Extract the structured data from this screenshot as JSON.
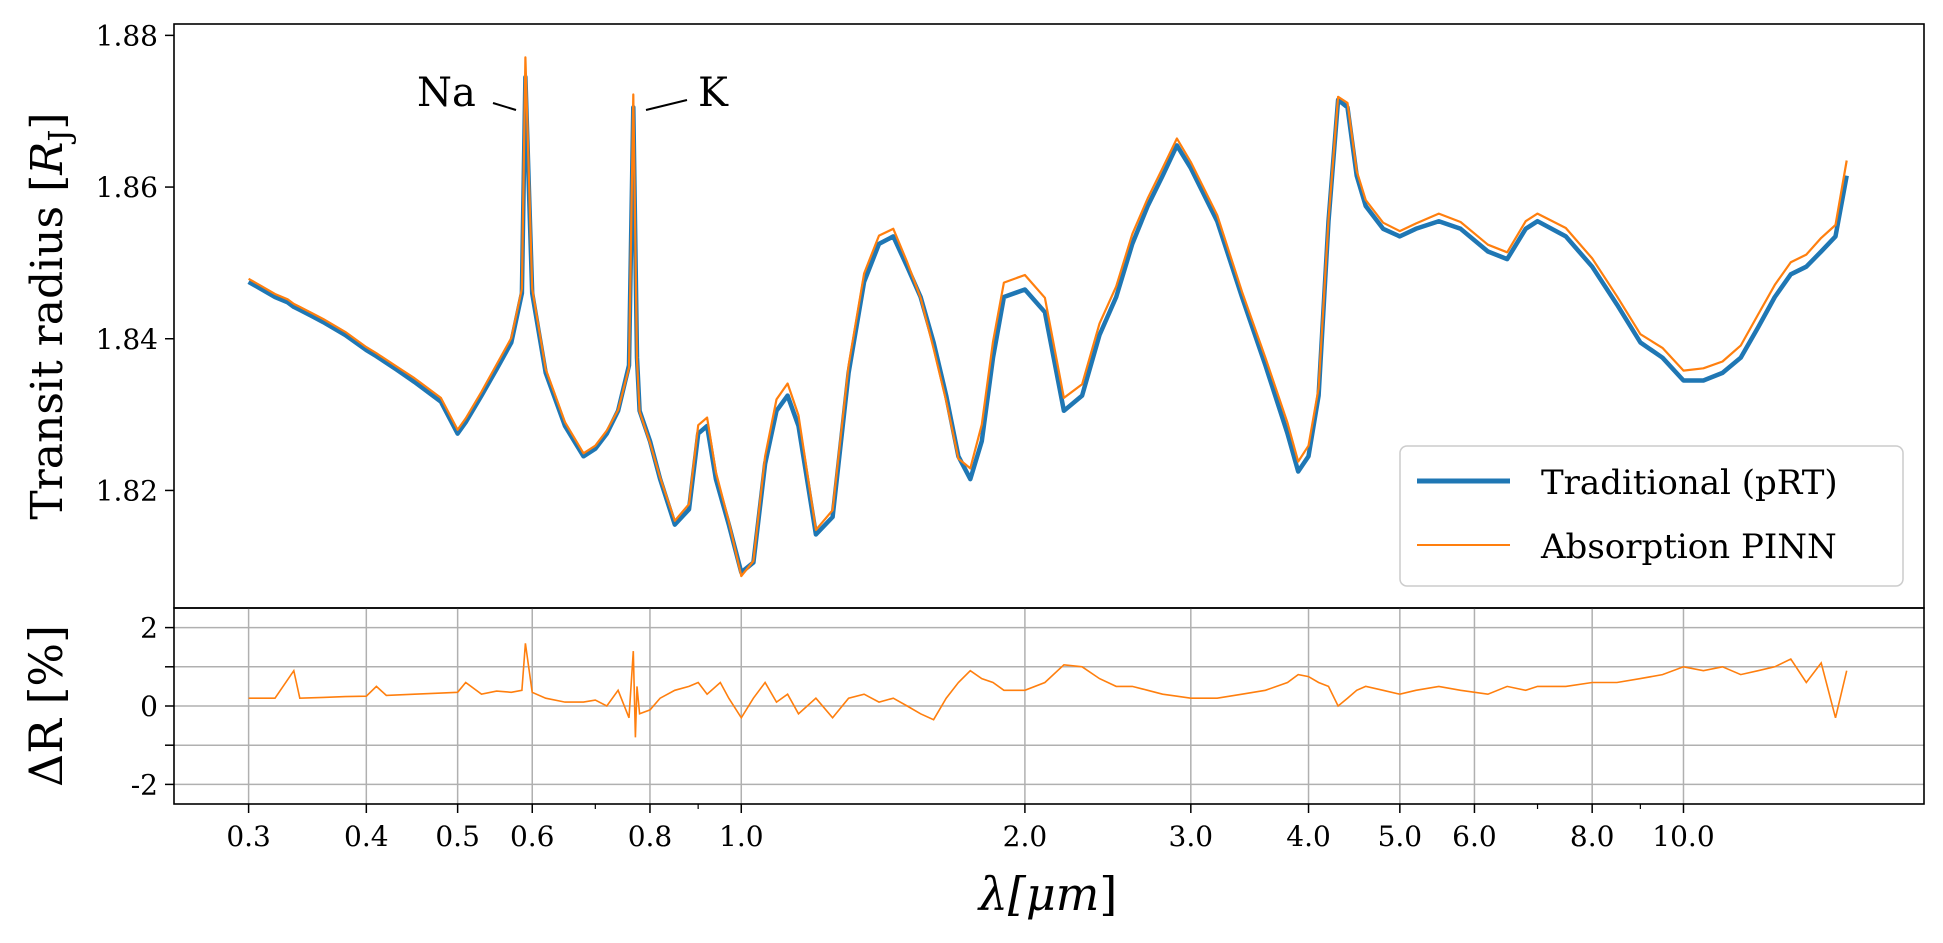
{
  "chart_data": [
    {
      "panel": "top",
      "type": "line",
      "xscale": "log",
      "xlim": [
        0.25,
        18.0
      ],
      "ylim": [
        1.8045,
        1.8815
      ],
      "ylabel": "Transit radius [R_J]",
      "ylabel_main": "Transit radius [",
      "ylabel_var": "R",
      "ylabel_sub": "J",
      "ylabel_close": "]",
      "yticks": [
        1.82,
        1.84,
        1.86,
        1.88
      ],
      "ytick_labels": [
        "1.82",
        "1.84",
        "1.86",
        "1.88"
      ],
      "grid": false,
      "legend_position": "lower-right",
      "series": [
        {
          "name": "Traditional (pRT)",
          "color": "#1f77b4",
          "x": [
            0.3,
            0.31,
            0.32,
            0.33,
            0.335,
            0.34,
            0.35,
            0.36,
            0.38,
            0.4,
            0.41,
            0.43,
            0.45,
            0.48,
            0.5,
            0.51,
            0.53,
            0.55,
            0.57,
            0.585,
            0.59,
            0.6,
            0.62,
            0.65,
            0.68,
            0.7,
            0.72,
            0.74,
            0.76,
            0.768,
            0.775,
            0.78,
            0.8,
            0.82,
            0.85,
            0.88,
            0.9,
            0.92,
            0.94,
            0.97,
            1.0,
            1.03,
            1.06,
            1.09,
            1.12,
            1.15,
            1.2,
            1.25,
            1.3,
            1.35,
            1.4,
            1.45,
            1.5,
            1.55,
            1.6,
            1.65,
            1.7,
            1.75,
            1.8,
            1.85,
            1.9,
            2.0,
            2.1,
            2.2,
            2.3,
            2.4,
            2.5,
            2.6,
            2.7,
            2.8,
            2.9,
            3.0,
            3.2,
            3.4,
            3.6,
            3.8,
            3.9,
            4.0,
            4.1,
            4.2,
            4.3,
            4.4,
            4.5,
            4.6,
            4.8,
            5.0,
            5.2,
            5.5,
            5.8,
            6.2,
            6.5,
            6.8,
            7.0,
            7.5,
            8.0,
            8.5,
            9.0,
            9.5,
            10.0,
            10.5,
            11.0,
            11.5,
            12.0,
            12.5,
            13.0,
            13.5,
            14.0,
            14.5,
            14.9
          ],
          "y": [
            1.8475,
            1.8465,
            1.8455,
            1.8448,
            1.8442,
            1.8438,
            1.843,
            1.8422,
            1.8405,
            1.8385,
            1.8377,
            1.836,
            1.8343,
            1.8317,
            1.8275,
            1.829,
            1.8325,
            1.836,
            1.8395,
            1.846,
            1.8745,
            1.846,
            1.8355,
            1.8285,
            1.8245,
            1.8255,
            1.8275,
            1.8305,
            1.8365,
            1.8705,
            1.8375,
            1.8305,
            1.8265,
            1.8215,
            1.8155,
            1.8175,
            1.8275,
            1.8285,
            1.8215,
            1.8155,
            1.8092,
            1.8105,
            1.8235,
            1.8305,
            1.8325,
            1.8285,
            1.8142,
            1.8165,
            1.8355,
            1.8475,
            1.8525,
            1.8535,
            1.8495,
            1.8455,
            1.8395,
            1.8325,
            1.8245,
            1.8215,
            1.8265,
            1.8375,
            1.8455,
            1.8465,
            1.8435,
            1.8305,
            1.8325,
            1.8405,
            1.8455,
            1.8525,
            1.8575,
            1.8615,
            1.8655,
            1.8625,
            1.8555,
            1.8455,
            1.8365,
            1.8275,
            1.8225,
            1.8245,
            1.8325,
            1.8555,
            1.8715,
            1.8705,
            1.8615,
            1.8575,
            1.8545,
            1.8535,
            1.8545,
            1.8555,
            1.8545,
            1.8515,
            1.8505,
            1.8545,
            1.8555,
            1.8535,
            1.8495,
            1.8445,
            1.8395,
            1.8375,
            1.8345,
            1.8345,
            1.8355,
            1.8375,
            1.8415,
            1.8455,
            1.8485,
            1.8495,
            1.8515,
            1.8535,
            1.8615
          ]
        },
        {
          "name": "Absorption PINN",
          "color": "#ff7f0e",
          "x": [
            0.3,
            0.31,
            0.32,
            0.33,
            0.335,
            0.34,
            0.35,
            0.36,
            0.38,
            0.4,
            0.41,
            0.43,
            0.45,
            0.48,
            0.5,
            0.51,
            0.53,
            0.55,
            0.57,
            0.585,
            0.59,
            0.6,
            0.62,
            0.65,
            0.68,
            0.7,
            0.72,
            0.74,
            0.76,
            0.768,
            0.775,
            0.78,
            0.8,
            0.82,
            0.85,
            0.88,
            0.9,
            0.92,
            0.94,
            0.97,
            1.0,
            1.03,
            1.06,
            1.09,
            1.12,
            1.15,
            1.2,
            1.25,
            1.3,
            1.35,
            1.4,
            1.45,
            1.5,
            1.55,
            1.6,
            1.65,
            1.7,
            1.75,
            1.8,
            1.85,
            1.9,
            2.0,
            2.1,
            2.2,
            2.3,
            2.4,
            2.5,
            2.6,
            2.7,
            2.8,
            2.9,
            3.0,
            3.2,
            3.4,
            3.6,
            3.8,
            3.9,
            4.0,
            4.1,
            4.2,
            4.3,
            4.4,
            4.5,
            4.6,
            4.8,
            5.0,
            5.2,
            5.5,
            5.8,
            6.2,
            6.5,
            6.8,
            7.0,
            7.5,
            8.0,
            8.5,
            9.0,
            9.5,
            10.0,
            10.5,
            11.0,
            11.5,
            12.0,
            12.5,
            13.0,
            13.5,
            14.0,
            14.5,
            14.9
          ],
          "y": [
            1.8479,
            1.8469,
            1.8459,
            1.8452,
            1.8446,
            1.8442,
            1.8434,
            1.8426,
            1.8409,
            1.8389,
            1.8381,
            1.8364,
            1.8348,
            1.8322,
            1.828,
            1.8295,
            1.833,
            1.8366,
            1.8401,
            1.8466,
            1.8771,
            1.8466,
            1.836,
            1.829,
            1.8249,
            1.8259,
            1.8279,
            1.8306,
            1.8362,
            1.8722,
            1.8372,
            1.8304,
            1.8263,
            1.8217,
            1.816,
            1.8182,
            1.8286,
            1.8296,
            1.8224,
            1.8159,
            1.8087,
            1.8107,
            1.8245,
            1.832,
            1.8341,
            1.8299,
            1.8148,
            1.8174,
            1.8365,
            1.8486,
            1.8536,
            1.8545,
            1.8501,
            1.8454,
            1.8387,
            1.8318,
            1.8242,
            1.8229,
            1.8287,
            1.8396,
            1.8474,
            1.8484,
            1.8454,
            1.8322,
            1.834,
            1.842,
            1.8469,
            1.8538,
            1.8585,
            1.8625,
            1.8664,
            1.8633,
            1.8563,
            1.8462,
            1.8375,
            1.8289,
            1.8238,
            1.8259,
            1.8335,
            1.8557,
            1.8719,
            1.8711,
            1.8621,
            1.8583,
            1.8553,
            1.8542,
            1.8552,
            1.8565,
            1.8554,
            1.8524,
            1.8514,
            1.8555,
            1.8565,
            1.8546,
            1.8506,
            1.8456,
            1.8406,
            1.8388,
            1.8358,
            1.8361,
            1.837,
            1.8391,
            1.8432,
            1.8471,
            1.8501,
            1.8511,
            1.8533,
            1.855,
            1.8635
          ]
        }
      ],
      "annotations": [
        {
          "text": "Na",
          "x": 0.589
        },
        {
          "text": "K",
          "x": 0.768
        }
      ]
    },
    {
      "panel": "bottom",
      "type": "line",
      "xscale": "log",
      "xlim": [
        0.25,
        18.0
      ],
      "ylim": [
        -2.5,
        2.5
      ],
      "xlabel": "λ[μm]",
      "xlabel_text": "λ[",
      "xlabel_var": "μm",
      "xlabel_close": "]",
      "ylabel": "ΔR [%]",
      "yticks": [
        -2,
        -1,
        0,
        1,
        2
      ],
      "ytick_labels": [
        "-2",
        "",
        "0",
        "",
        "2"
      ],
      "xticks_major": [
        0.3,
        0.4,
        0.5,
        0.6,
        0.8,
        1.0,
        2.0,
        3.0,
        4.0,
        5.0,
        6.0,
        8.0,
        10.0
      ],
      "xtick_labels": [
        "0.3",
        "0.4",
        "0.5",
        "0.6",
        "0.8",
        "1.0",
        "2.0",
        "3.0",
        "4.0",
        "5.0",
        "6.0",
        "8.0",
        "10.0"
      ],
      "xticks_minor": [
        0.7,
        0.9,
        7.0,
        9.0
      ],
      "grid": true,
      "series": [
        {
          "name": "ΔR",
          "color": "#ff7f0e",
          "x": [
            0.3,
            0.32,
            0.335,
            0.34,
            0.36,
            0.38,
            0.4,
            0.41,
            0.42,
            0.45,
            0.48,
            0.5,
            0.51,
            0.53,
            0.55,
            0.57,
            0.585,
            0.59,
            0.6,
            0.62,
            0.65,
            0.68,
            0.7,
            0.72,
            0.74,
            0.76,
            0.768,
            0.772,
            0.775,
            0.78,
            0.8,
            0.82,
            0.85,
            0.88,
            0.9,
            0.92,
            0.95,
            0.97,
            1.0,
            1.03,
            1.06,
            1.09,
            1.12,
            1.15,
            1.2,
            1.25,
            1.3,
            1.35,
            1.4,
            1.45,
            1.5,
            1.55,
            1.6,
            1.65,
            1.7,
            1.75,
            1.8,
            1.85,
            1.9,
            2.0,
            2.1,
            2.2,
            2.3,
            2.4,
            2.5,
            2.6,
            2.7,
            2.8,
            2.9,
            3.0,
            3.2,
            3.4,
            3.6,
            3.8,
            3.9,
            4.0,
            4.1,
            4.2,
            4.3,
            4.4,
            4.5,
            4.6,
            4.8,
            5.0,
            5.2,
            5.5,
            5.8,
            6.2,
            6.5,
            6.8,
            7.0,
            7.5,
            8.0,
            8.5,
            9.0,
            9.5,
            10.0,
            10.5,
            11.0,
            11.5,
            12.0,
            12.5,
            13.0,
            13.5,
            14.0,
            14.5,
            14.9
          ],
          "y": [
            0.2,
            0.2,
            0.9,
            0.2,
            0.22,
            0.24,
            0.25,
            0.5,
            0.27,
            0.3,
            0.33,
            0.35,
            0.6,
            0.3,
            0.38,
            0.35,
            0.4,
            1.6,
            0.35,
            0.2,
            0.1,
            0.1,
            0.15,
            0.0,
            0.4,
            -0.3,
            1.4,
            -0.8,
            0.5,
            -0.2,
            -0.1,
            0.2,
            0.4,
            0.5,
            0.6,
            0.3,
            0.6,
            0.2,
            -0.3,
            0.2,
            0.6,
            0.1,
            0.3,
            -0.2,
            0.2,
            -0.3,
            0.2,
            0.3,
            0.1,
            0.2,
            0.0,
            -0.2,
            -0.35,
            0.2,
            0.6,
            0.9,
            0.7,
            0.6,
            0.4,
            0.4,
            0.6,
            1.05,
            1.0,
            0.7,
            0.5,
            0.5,
            0.4,
            0.3,
            0.25,
            0.2,
            0.2,
            0.3,
            0.4,
            0.6,
            0.8,
            0.75,
            0.6,
            0.5,
            0.0,
            0.2,
            0.4,
            0.5,
            0.4,
            0.3,
            0.4,
            0.5,
            0.4,
            0.3,
            0.5,
            0.4,
            0.5,
            0.5,
            0.6,
            0.6,
            0.7,
            0.8,
            1.0,
            0.9,
            1.0,
            0.8,
            0.9,
            1.0,
            1.2,
            0.6,
            1.1,
            -0.3,
            0.9
          ]
        }
      ]
    }
  ],
  "legend": {
    "items": [
      {
        "label": "Traditional (pRT)",
        "color": "#1f77b4"
      },
      {
        "label": "Absorption PINN",
        "color": "#ff7f0e"
      }
    ]
  }
}
